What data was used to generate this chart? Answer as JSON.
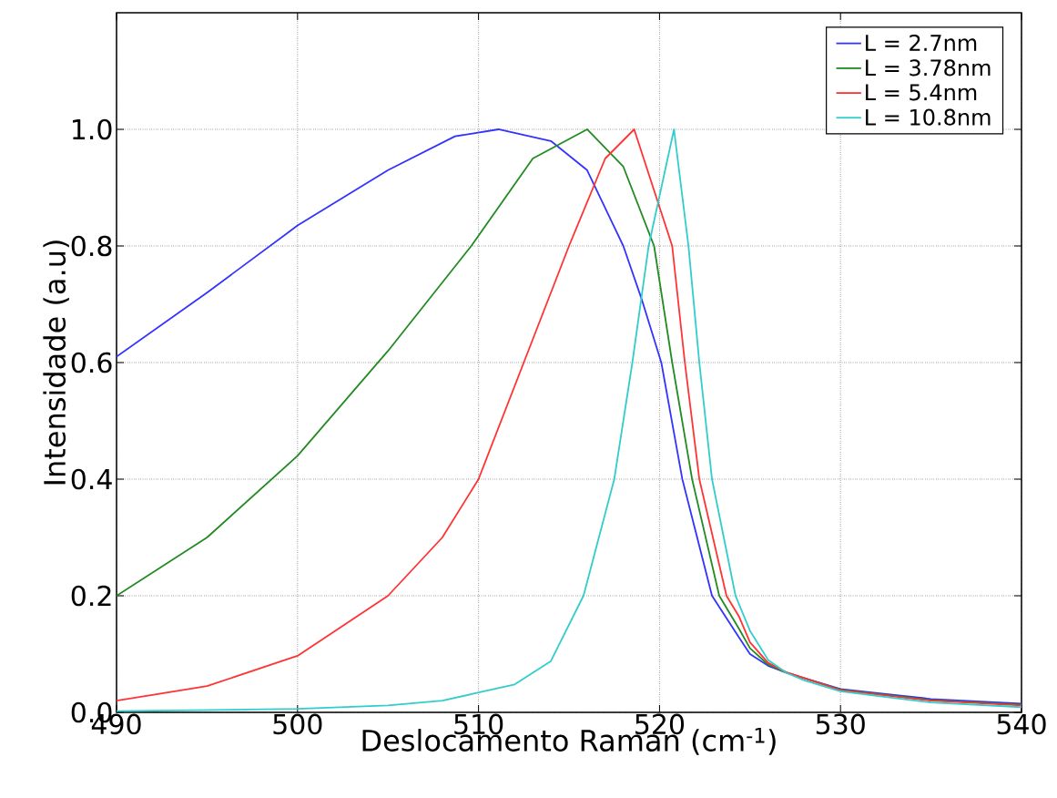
{
  "chart_data": {
    "type": "line",
    "xlabel": "Deslocamento Raman (cm$^{-1}$)",
    "ylabel": "Intensidade (a.u)",
    "xlim": [
      490,
      540
    ],
    "ylim": [
      0,
      1.2
    ],
    "xticks": [
      490,
      500,
      510,
      520,
      530,
      540
    ],
    "yticks": [
      {
        "value": 0,
        "label": "0.0"
      },
      {
        "value": 0.2,
        "label": "0.2"
      },
      {
        "value": 0.4,
        "label": "0.4"
      },
      {
        "value": 0.6,
        "label": "0.6"
      },
      {
        "value": 0.8,
        "label": "0.8"
      },
      {
        "value": 1.0,
        "label": "1.0"
      }
    ],
    "grid": true,
    "legend": "top right",
    "marker": "none",
    "line_style": "solid",
    "series": [
      {
        "name": "L = 2.7nm",
        "color": "#3333ff",
        "x": [
          490,
          495,
          500,
          505,
          508.7,
          511.1,
          514,
          516,
          518,
          519,
          520.1,
          521.26,
          522.9,
          524.4,
          525,
          526,
          527,
          530,
          535,
          540
        ],
        "values": [
          0.61,
          0.72,
          0.835,
          0.93,
          0.988,
          1.0,
          0.98,
          0.93,
          0.8,
          0.71,
          0.6,
          0.4,
          0.2,
          0.128,
          0.1,
          0.08,
          0.068,
          0.04,
          0.023,
          0.015
        ]
      },
      {
        "name": "L = 3.78nm",
        "color": "#228b22",
        "x": [
          490,
          495,
          500,
          505,
          509.6,
          513,
          516,
          518,
          519.7,
          520.7,
          521.8,
          523.3,
          524.4,
          525,
          526,
          527,
          530,
          535,
          540
        ],
        "values": [
          0.2,
          0.3,
          0.44,
          0.62,
          0.8,
          0.95,
          1.0,
          0.936,
          0.8,
          0.6,
          0.4,
          0.2,
          0.143,
          0.11,
          0.082,
          0.068,
          0.039,
          0.021,
          0.013
        ]
      },
      {
        "name": "L = 5.4nm",
        "color": "#ff3333",
        "x": [
          490,
          495,
          500,
          505,
          508,
          510,
          512.5,
          515,
          517,
          518.6,
          520.7,
          521.4,
          522.2,
          523.7,
          524.4,
          525,
          526,
          527,
          530,
          535,
          540
        ],
        "values": [
          0.02,
          0.045,
          0.097,
          0.2,
          0.3,
          0.4,
          0.6,
          0.8,
          0.95,
          1.0,
          0.8,
          0.6,
          0.4,
          0.2,
          0.164,
          0.12,
          0.085,
          0.069,
          0.038,
          0.02,
          0.012
        ]
      },
      {
        "name": "L = 10.8nm",
        "color": "#33cccc",
        "x": [
          490,
          500,
          505,
          508,
          510,
          512,
          514,
          515.8,
          517.5,
          518.5,
          519.4,
          520.8,
          521.6,
          522.2,
          522.9,
          524.2,
          525,
          526,
          527,
          528,
          530,
          535,
          540
        ],
        "values": [
          0.002,
          0.006,
          0.012,
          0.02,
          0.034,
          0.048,
          0.088,
          0.2,
          0.4,
          0.6,
          0.8,
          1.0,
          0.8,
          0.6,
          0.4,
          0.2,
          0.14,
          0.09,
          0.068,
          0.055,
          0.036,
          0.017,
          0.009
        ]
      }
    ]
  }
}
